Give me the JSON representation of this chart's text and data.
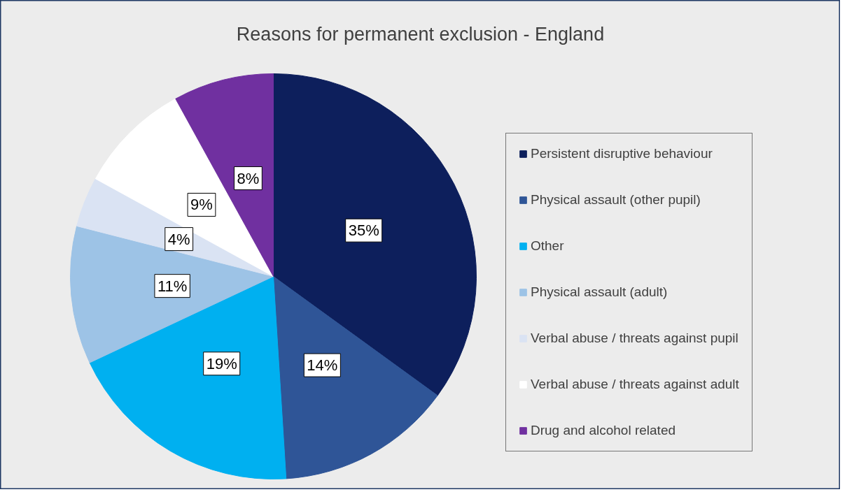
{
  "chart_data": {
    "type": "pie",
    "title": "Reasons for permanent exclusion - England",
    "categories": [
      "Persistent disruptive behaviour",
      "Physical assault (other pupil)",
      "Other",
      "Physical assault (adult)",
      "Verbal abuse / threats against pupil",
      "Verbal abuse / threats against adult",
      "Drug and alcohol related"
    ],
    "values": [
      35,
      14,
      19,
      11,
      4,
      9,
      8
    ],
    "colors": [
      "#0d1f5c",
      "#2f5597",
      "#00b0f0",
      "#9dc3e6",
      "#dae3f3",
      "#ffffff",
      "#7030a0"
    ],
    "value_labels": [
      "35%",
      "14%",
      "19%",
      "11%",
      "4%",
      "9%",
      "8%"
    ],
    "legend": "right"
  }
}
